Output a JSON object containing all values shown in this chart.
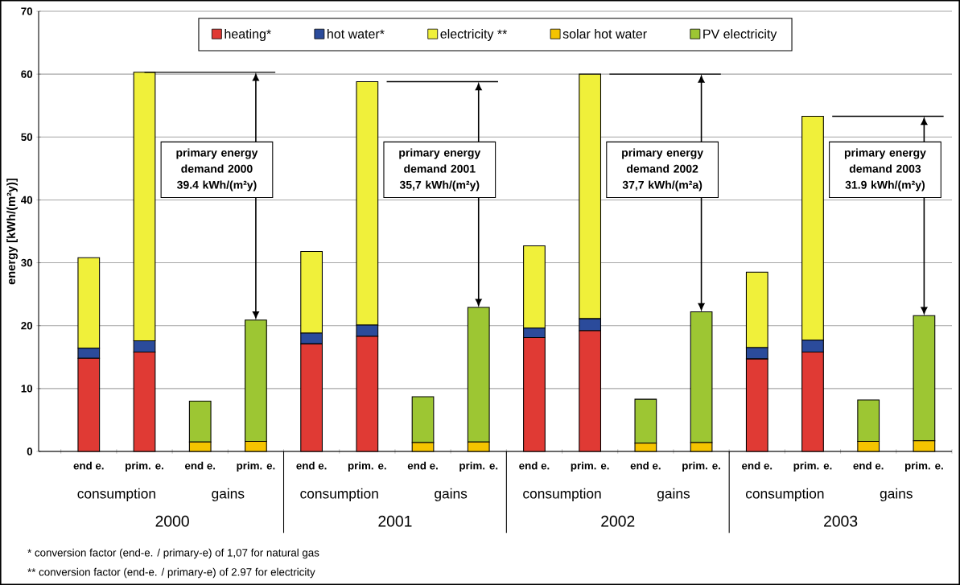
{
  "chart_data": {
    "type": "bar",
    "stacked": true,
    "ylabel": "energy [kWh/(m²y)]",
    "categories": [
      "end e.",
      "prim. e.",
      "end e.",
      "prim. e.",
      "end e.",
      "prim. e.",
      "end e.",
      "prim. e.",
      "end e.",
      "prim. e.",
      "end e.",
      "prim. e.",
      "end e.",
      "prim. e.",
      "end e.",
      "prim. e."
    ],
    "series": [
      {
        "name": "heating*",
        "color": "#e03a34",
        "values": [
          14.8,
          15.8,
          null,
          null,
          17.1,
          18.3,
          null,
          null,
          18.1,
          19.2,
          null,
          null,
          14.7,
          15.8,
          null,
          null
        ]
      },
      {
        "name": "hot water*",
        "color": "#2b4b9b",
        "values": [
          1.6,
          1.8,
          null,
          null,
          1.7,
          1.8,
          null,
          null,
          1.5,
          1.9,
          null,
          null,
          1.8,
          1.9,
          null,
          null
        ]
      },
      {
        "name": "electricity **",
        "color": "#f0f03a",
        "values": [
          14.4,
          42.7,
          null,
          null,
          13.0,
          38.7,
          null,
          null,
          13.1,
          38.9,
          null,
          null,
          12.0,
          35.6,
          null,
          null
        ]
      },
      {
        "name": "solar hot water",
        "color": "#f5c400",
        "values": [
          null,
          null,
          1.5,
          1.6,
          null,
          null,
          1.4,
          1.5,
          null,
          null,
          1.3,
          1.4,
          null,
          null,
          1.6,
          1.7
        ]
      },
      {
        "name": "PV electricity",
        "color": "#9dc633",
        "values": [
          null,
          null,
          6.5,
          19.3,
          null,
          null,
          7.3,
          21.4,
          null,
          null,
          7.0,
          20.8,
          null,
          null,
          6.6,
          19.9
        ]
      }
    ],
    "ylim": [
      0,
      70
    ],
    "yticks": [
      0,
      10,
      20,
      30,
      40,
      50,
      60,
      70
    ],
    "grid": "y",
    "legend": "top",
    "annotations": [
      "consumption",
      "gains",
      "consumption",
      "gains",
      "consumption",
      "gains",
      "consumption",
      "gains",
      "2000",
      "2001",
      "2002",
      "2003",
      "primary energy demand 2000 39.4 kWh/(m²y)",
      "primary energy demand 2001 35,7 kWh/(m²y)",
      "primary energy demand 2002 37,7 kWh/(m²a)",
      "primary energy demand 2003 31.9 kWh/(m²y)",
      "* conversion factor (end-e. / primary-e) of 1,07 for natural gas",
      "** conversion factor (end-e. / primary-e) of 2.97 for electricity"
    ]
  }
}
